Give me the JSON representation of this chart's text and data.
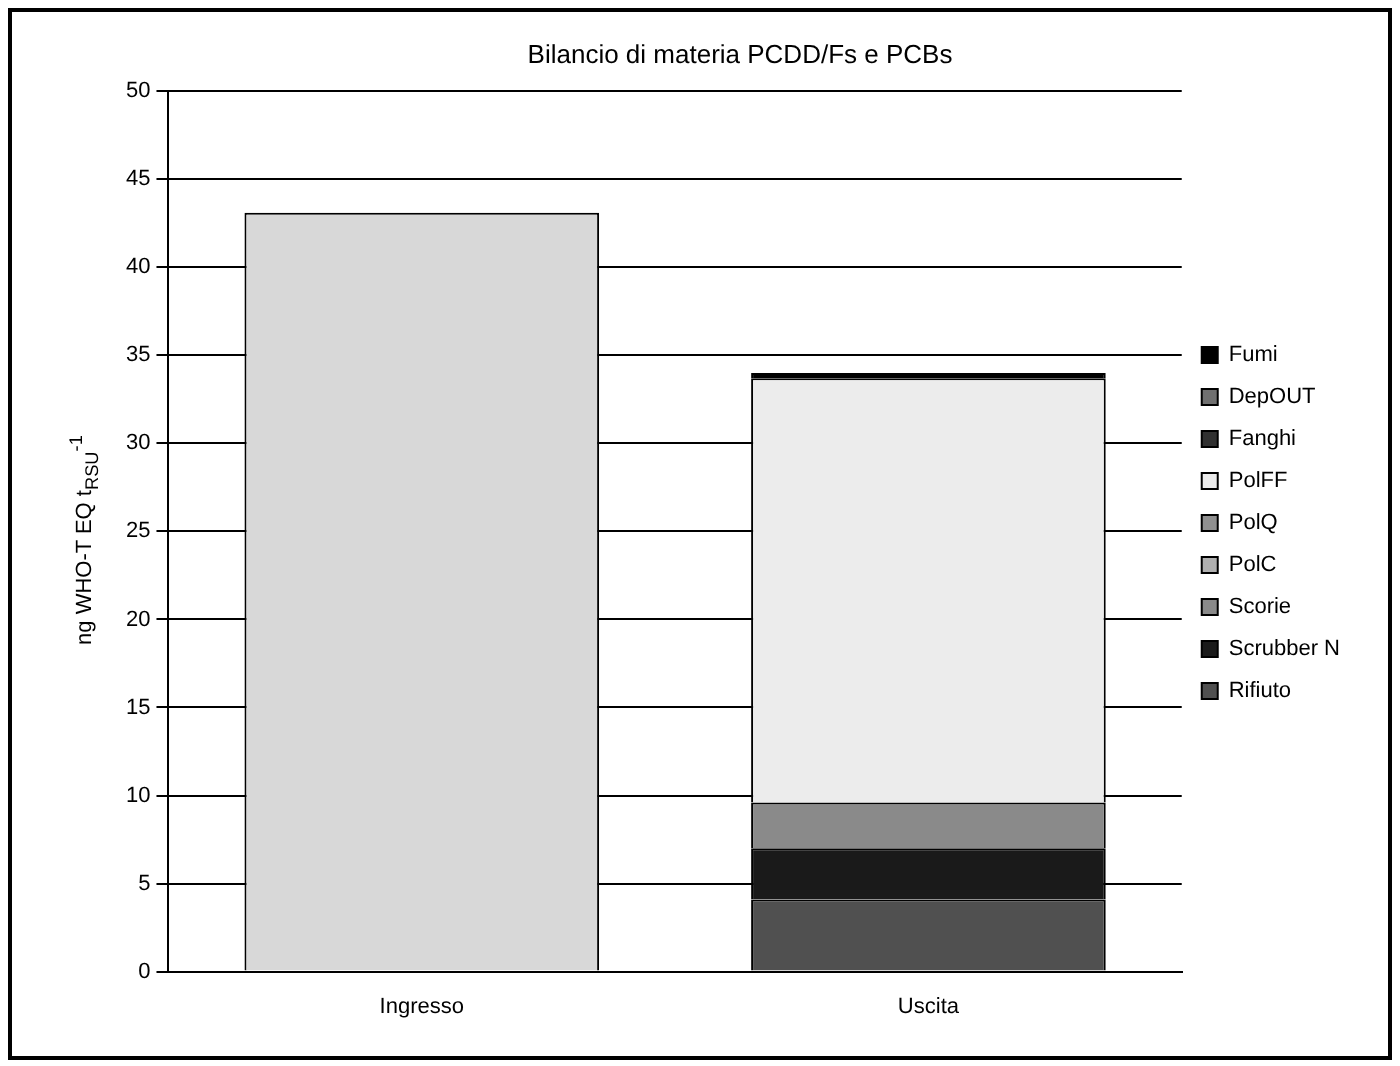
{
  "chart_data": {
    "type": "bar",
    "title": "Bilancio di materia PCDD/Fs e PCBs",
    "ylabel": "ng WHO-T EQ t$_{RSU}$$^{-1}$",
    "categories": [
      "Ingresso",
      "Uscita"
    ],
    "stacked": true,
    "ylim": [
      0,
      50
    ],
    "yticks": [
      0,
      5,
      10,
      15,
      20,
      25,
      30,
      35,
      40,
      45,
      50
    ],
    "grid": "y",
    "legend": "right",
    "series": [
      {
        "color": "#d8d8d8",
        "values": [
          43.1,
          null
        ]
      },
      {
        "name": "Rifiuto",
        "color": "#505050",
        "values": [
          null,
          4.1
        ]
      },
      {
        "name": "Scrubber N",
        "color": "#1a1a1a",
        "values": [
          null,
          2.9
        ]
      },
      {
        "name": "Scorie",
        "color": "#8a8a8a",
        "values": [
          null,
          2.6
        ]
      },
      {
        "name": "PolC",
        "color": "#b0b0b0",
        "values": [
          null,
          0
        ]
      },
      {
        "name": "PolQ",
        "color": "#909090",
        "values": [
          null,
          0
        ]
      },
      {
        "name": "PolFF",
        "color": "#ececec",
        "values": [
          null,
          24.1
        ]
      },
      {
        "name": "Fanghi",
        "color": "#303030",
        "values": [
          null,
          0
        ]
      },
      {
        "name": "DepOUT",
        "color": "#707070",
        "values": [
          null,
          0
        ]
      },
      {
        "name": "Fumi",
        "color": "#000000",
        "values": [
          null,
          0.3
        ]
      }
    ]
  }
}
